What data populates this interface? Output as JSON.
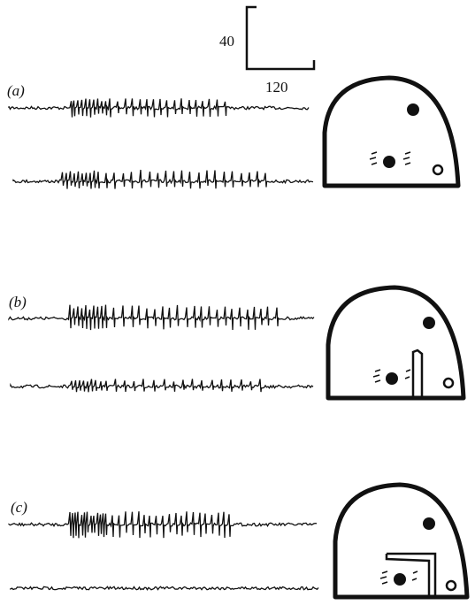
{
  "scale_bar": {
    "vertical_label": "40",
    "horizontal_label": "120"
  },
  "panels": [
    {
      "label": "(a)"
    },
    {
      "label": "(b)"
    },
    {
      "label": "(c)"
    }
  ]
}
